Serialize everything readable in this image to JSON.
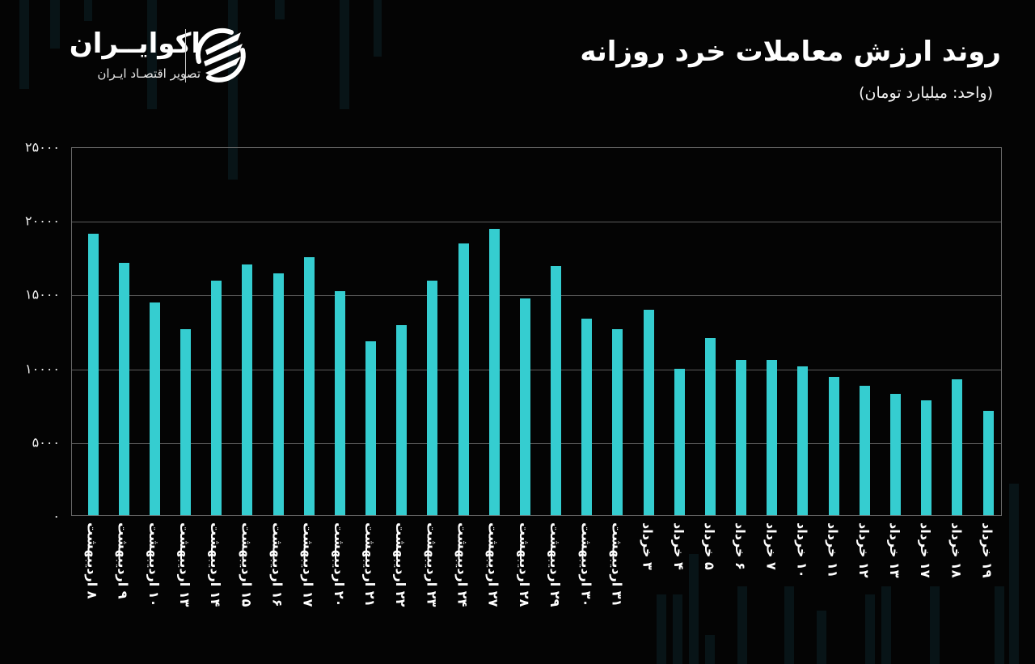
{
  "branding": {
    "logo_name": "اکوایــران",
    "logo_tagline": "تصویر اقتصـاد ایـران",
    "logo_icon": "ecoiran-swoosh-logo-icon"
  },
  "header": {
    "title": "روند ارزش معاملات خرد روزانه",
    "subtitle": "(واحد: میلیارد تومان)"
  },
  "colors": {
    "background": "#040404",
    "bar": "#35cdd0",
    "gridline": "#5c5c5c",
    "text": "#ffffff"
  },
  "y_axis": {
    "ticks": [
      "۰",
      "۵۰۰۰",
      "۱۰۰۰۰",
      "۱۵۰۰۰",
      "۲۰۰۰۰",
      "۲۵۰۰۰"
    ],
    "tick_values": [
      0,
      5000,
      10000,
      15000,
      20000,
      25000
    ]
  },
  "chart_data": {
    "type": "bar",
    "title": "روند ارزش معاملات خرد روزانه",
    "subtitle": "(واحد: میلیارد تومان)",
    "xlabel": "",
    "ylabel": "میلیارد تومان",
    "ylim": [
      0,
      25000
    ],
    "grid": true,
    "legend": null,
    "categories": [
      "۸ اردیبهشت",
      "۹ اردیبهشت",
      "۱۰ اردیبهشت",
      "۱۳ اردیبهشت",
      "۱۴ اردیبهشت",
      "۱۵ اردیبهشت",
      "۱۶ اردیبهشت",
      "۱۷ اردیبهشت",
      "۲۰ اردیبهشت",
      "۲۱ اردیبهشت",
      "۲۲ اردیبهشت",
      "۲۳ اردیبهشت",
      "۲۴ اردیبهشت",
      "۲۷ اردیبهشت",
      "۲۸ اردیبهشت",
      "۲۹ اردیبهشت",
      "۳۰ اردیبهشت",
      "۳۱ اردیبهشت",
      "۳ خرداد",
      "۴ خرداد",
      "۵ خرداد",
      "۶ خرداد",
      "۷ خرداد",
      "۱۰ خرداد",
      "۱۱ خرداد",
      "۱۲ خرداد",
      "۱۳ خرداد",
      "۱۷ خرداد",
      "۱۸ خرداد",
      "۱۹ خرداد"
    ],
    "values": [
      19100,
      17100,
      14400,
      12600,
      15900,
      17000,
      16400,
      17500,
      15200,
      11800,
      12900,
      15900,
      18400,
      19400,
      14700,
      16900,
      13300,
      12600,
      13900,
      9900,
      12000,
      10500,
      10500,
      10100,
      9400,
      8800,
      8200,
      7800,
      9200,
      7100
    ]
  }
}
